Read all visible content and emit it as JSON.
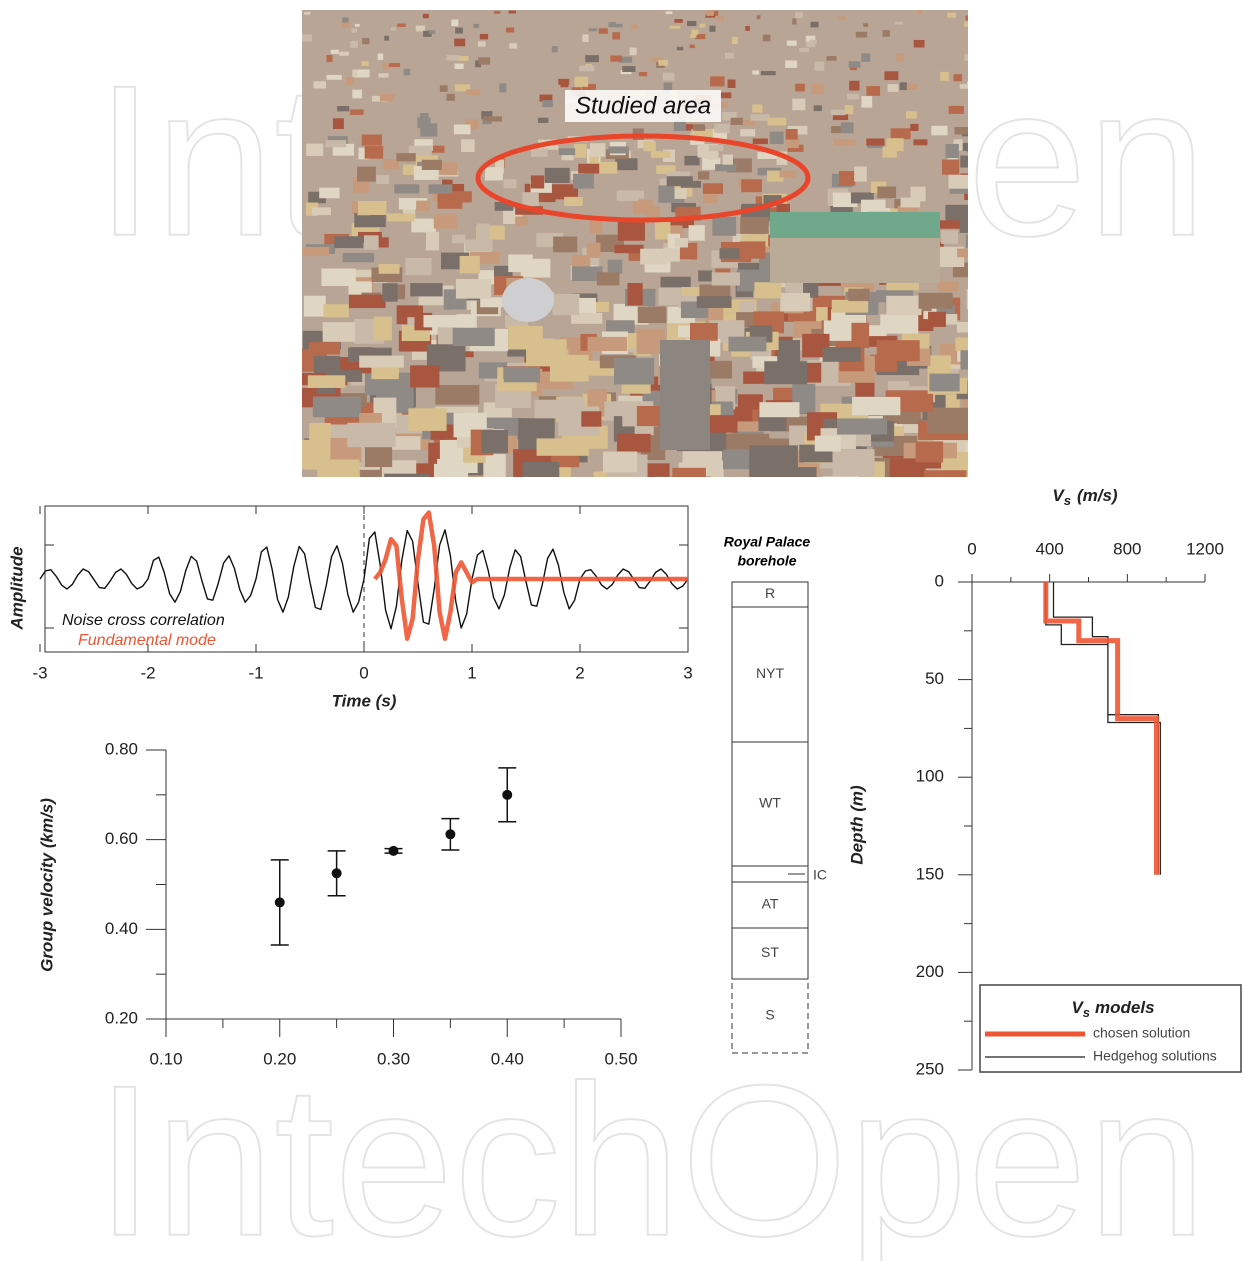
{
  "watermark": "IntechOpen",
  "photo": {
    "label": "Studied area"
  },
  "borehole": {
    "title": [
      "Royal Palace",
      "borehole"
    ],
    "layers": [
      "R",
      "NYT",
      "WT",
      "IC",
      "AT",
      "ST",
      "S"
    ]
  },
  "chart_data": [
    {
      "type": "line",
      "xlabel": "Time (s)",
      "ylabel": "Amplitude",
      "xlim": [
        -3,
        3
      ],
      "ylim": [
        -1.1,
        1.1
      ],
      "xticks": [
        -3,
        -2,
        -1,
        0,
        1,
        2,
        3
      ],
      "x": [
        -3,
        -2.95,
        -2.9,
        -2.85,
        -2.8,
        -2.75,
        -2.7,
        -2.65,
        -2.6,
        -2.55,
        -2.5,
        -2.45,
        -2.4,
        -2.35,
        -2.3,
        -2.25,
        -2.2,
        -2.15,
        -2.1,
        -2.05,
        -2,
        -1.95,
        -1.9,
        -1.85,
        -1.8,
        -1.75,
        -1.7,
        -1.65,
        -1.6,
        -1.55,
        -1.5,
        -1.45,
        -1.4,
        -1.35,
        -1.3,
        -1.25,
        -1.2,
        -1.15,
        -1.1,
        -1.05,
        -1,
        -0.95,
        -0.9,
        -0.85,
        -0.8,
        -0.75,
        -0.7,
        -0.65,
        -0.6,
        -0.55,
        -0.5,
        -0.45,
        -0.4,
        -0.35,
        -0.3,
        -0.25,
        -0.2,
        -0.15,
        -0.1,
        -0.05,
        0,
        0.05,
        0.1,
        0.15,
        0.2,
        0.25,
        0.3,
        0.35,
        0.4,
        0.45,
        0.5,
        0.55,
        0.6,
        0.65,
        0.7,
        0.75,
        0.8,
        0.85,
        0.9,
        0.95,
        1,
        1.05,
        1.1,
        1.15,
        1.2,
        1.25,
        1.3,
        1.35,
        1.4,
        1.45,
        1.5,
        1.55,
        1.6,
        1.65,
        1.7,
        1.75,
        1.8,
        1.85,
        1.9,
        1.95,
        2,
        2.05,
        2.1,
        2.15,
        2.2,
        2.25,
        2.3,
        2.35,
        2.4,
        2.45,
        2.5,
        2.55,
        2.6,
        2.65,
        2.7,
        2.75,
        2.8,
        2.85,
        2.9,
        2.95,
        3
      ],
      "series": [
        {
          "name": "Noise cross correlation",
          "color": "#111111",
          "values": [
            0,
            0.12,
            0.14,
            0.04,
            -0.09,
            -0.15,
            -0.08,
            0.06,
            0.15,
            0.11,
            -0.01,
            -0.13,
            -0.14,
            -0.03,
            0.1,
            0.15,
            0.07,
            -0.07,
            -0.15,
            -0.11,
            0,
            0.28,
            0.33,
            0.1,
            -0.22,
            -0.35,
            -0.19,
            0.13,
            0.34,
            0.27,
            -0.03,
            -0.3,
            -0.32,
            -0.07,
            0.24,
            0.35,
            0.16,
            -0.16,
            -0.35,
            -0.25,
            0,
            0.41,
            0.48,
            0.14,
            -0.31,
            -0.5,
            -0.27,
            0.19,
            0.49,
            0.38,
            -0.05,
            -0.43,
            -0.46,
            -0.1,
            0.34,
            0.5,
            0.24,
            -0.23,
            -0.5,
            -0.35,
            0,
            0.61,
            0.71,
            0.21,
            -0.47,
            -0.75,
            -0.41,
            0.28,
            0.73,
            0.57,
            -0.07,
            -0.65,
            -0.68,
            -0.15,
            0.51,
            0.74,
            0.35,
            -0.34,
            -0.74,
            -0.53,
            0,
            0.36,
            0.43,
            0.13,
            -0.28,
            -0.45,
            -0.24,
            0.17,
            0.44,
            0.34,
            -0.04,
            -0.39,
            -0.41,
            -0.09,
            0.31,
            0.45,
            0.21,
            -0.2,
            -0.45,
            -0.32,
            0,
            0.12,
            0.14,
            0.04,
            -0.09,
            -0.15,
            -0.08,
            0.06,
            0.15,
            0.11,
            -0.01,
            -0.13,
            -0.14,
            -0.03,
            0.1,
            0.15,
            0.07,
            -0.07,
            -0.15,
            -0.11,
            0
          ]
        },
        {
          "name": "Fundamental mode",
          "color": "#ee5533",
          "values": [
            null,
            null,
            null,
            null,
            null,
            null,
            null,
            null,
            null,
            null,
            null,
            null,
            null,
            null,
            null,
            null,
            null,
            null,
            null,
            null,
            null,
            null,
            null,
            null,
            null,
            null,
            null,
            null,
            null,
            null,
            null,
            null,
            null,
            null,
            null,
            null,
            null,
            null,
            null,
            null,
            null,
            null,
            null,
            null,
            null,
            null,
            null,
            null,
            null,
            null,
            null,
            null,
            null,
            null,
            null,
            null,
            null,
            null,
            null,
            null,
            null,
            null,
            0,
            0.1,
            0.3,
            0.6,
            0.5,
            -0.3,
            -0.9,
            -0.6,
            0.3,
            0.9,
            1.0,
            0.5,
            -0.5,
            -0.9,
            -0.5,
            0.1,
            0.25,
            0.1,
            -0.05,
            0,
            0,
            0,
            0,
            0,
            0,
            0,
            0,
            0,
            0,
            0,
            0,
            0,
            0,
            0,
            0,
            0,
            0,
            0,
            0,
            0,
            0,
            0,
            0,
            0,
            0,
            0,
            0,
            0,
            0,
            0,
            0,
            0,
            0,
            0,
            0,
            0,
            0,
            0,
            0
          ]
        }
      ]
    },
    {
      "type": "scatter",
      "ylabel": "Group velocity (km/s)",
      "xlim": [
        0.1,
        0.5
      ],
      "ylim": [
        0.2,
        0.8
      ],
      "xticks": [
        {
          "value": 0.1,
          "label": "0.10"
        },
        {
          "value": 0.2,
          "label": "0.20"
        },
        {
          "value": 0.3,
          "label": "0.30"
        },
        {
          "value": 0.4,
          "label": "0.40"
        },
        {
          "value": 0.5,
          "label": "0.50"
        }
      ],
      "yticks": [
        {
          "value": 0.2,
          "label": "0.20"
        },
        {
          "value": 0.4,
          "label": "0.40"
        },
        {
          "value": 0.6,
          "label": "0.60"
        },
        {
          "value": 0.8,
          "label": "0.80"
        }
      ],
      "color": "#111111",
      "x": [
        0.2,
        0.25,
        0.3,
        0.35,
        0.4
      ],
      "values": [
        0.46,
        0.525,
        0.575,
        0.612,
        0.7
      ],
      "errors": [
        0.095,
        0.05,
        0.005,
        0.035,
        0.06
      ]
    },
    {
      "type": "line",
      "xlabel": {
        "symbol": "V",
        "subscript": "s",
        "unit": "(m/s)"
      },
      "ylabel": "Depth (m)",
      "xlim": [
        0,
        1200
      ],
      "ylim": [
        0,
        250
      ],
      "yreverse": true,
      "xticks": [
        0,
        400,
        800,
        1200
      ],
      "yticks": [
        0,
        50,
        100,
        150,
        200,
        250
      ],
      "legend": {
        "title": {
          "symbol": "V",
          "subscript": "s",
          "text": "models"
        },
        "position": "lower right"
      },
      "series": [
        {
          "name": "chosen solution",
          "color": "#ee5533",
          "values": [
            380,
            380,
            550,
            550,
            750,
            750,
            950,
            950
          ],
          "depth": [
            0,
            20,
            20,
            30,
            30,
            70,
            70,
            150
          ]
        },
        {
          "name": "Hedgehog solutions",
          "color": "#222222",
          "values": [
            420,
            420,
            620,
            620,
            700,
            700,
            960,
            960,
            null,
            380,
            380,
            460,
            460,
            700,
            700,
            970,
            970
          ],
          "depth": [
            0,
            18,
            18,
            28,
            28,
            68,
            68,
            150,
            null,
            0,
            22,
            22,
            32,
            32,
            72,
            72,
            150
          ]
        }
      ]
    }
  ]
}
